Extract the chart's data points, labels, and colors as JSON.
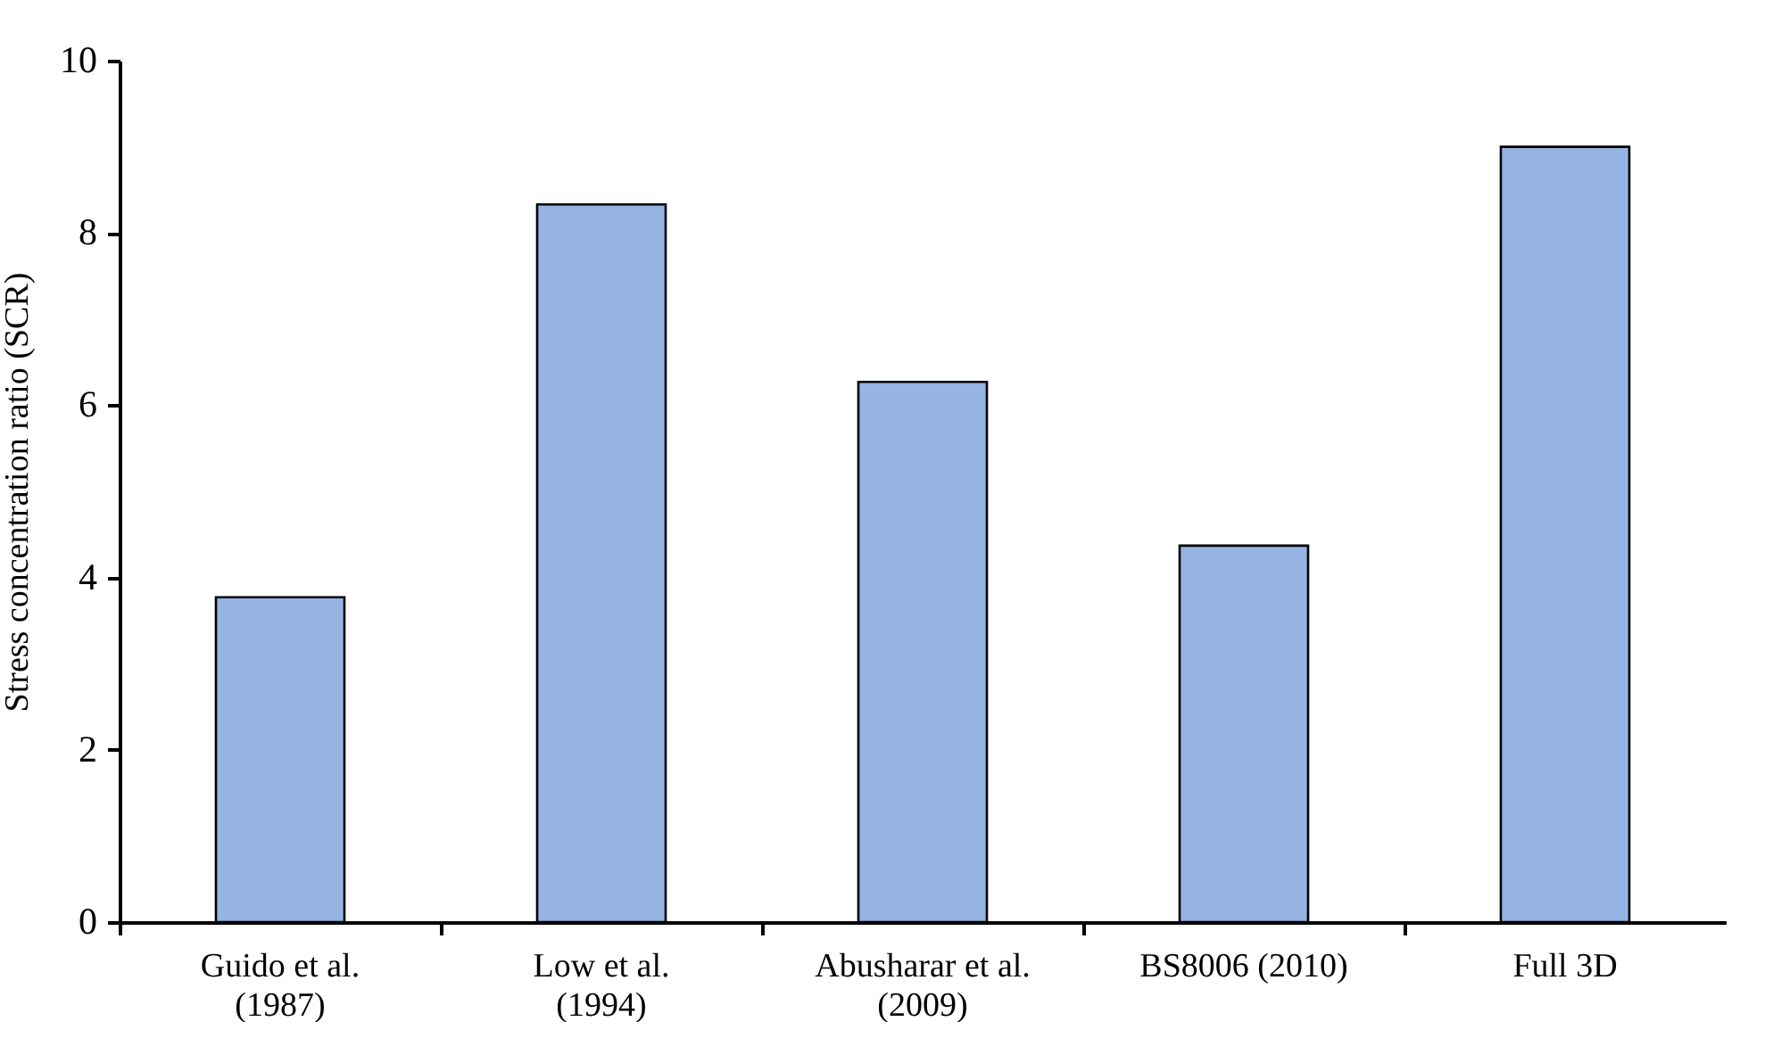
{
  "chart_data": {
    "type": "bar",
    "ylabel": "Stress concentration ratio (SCR)",
    "categories": [
      "Guido et al.\n(1987)",
      "Low et al.\n(1994)",
      "Abusharar et al.\n(2009)",
      "BS8006 (2010)",
      "Full 3D"
    ],
    "values": [
      3.77,
      8.33,
      6.27,
      4.37,
      9.0
    ],
    "color": "#95b3e3",
    "ylim": [
      0,
      10
    ],
    "yticks": [
      0,
      2,
      4,
      6,
      8,
      10
    ],
    "grid": false
  }
}
